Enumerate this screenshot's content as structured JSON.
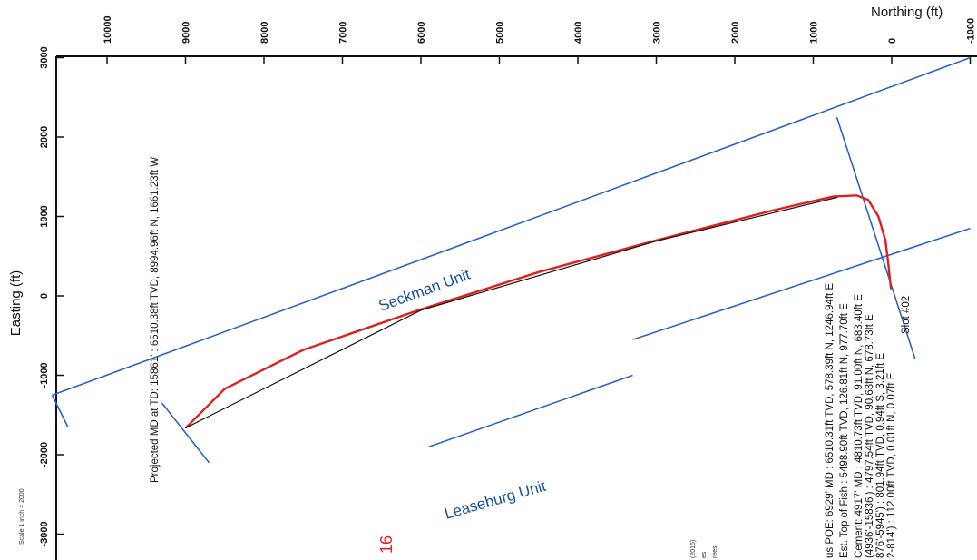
{
  "chart_data": {
    "type": "line",
    "title": "",
    "xlabel": "Northing (ft)",
    "ylabel": "Easting (ft)",
    "x_ticks": [
      "10000",
      "9000",
      "8000",
      "7000",
      "6000",
      "5000",
      "4000",
      "3000",
      "2000",
      "1000",
      "0",
      "-1000"
    ],
    "y_ticks": [
      "3000",
      "2000",
      "1000",
      "0",
      "-1000",
      "-2000",
      "-3000"
    ],
    "grid": false,
    "series": [
      {
        "color": "#e02020",
        "points": [
          {
            "n": 10,
            "e": 90
          },
          {
            "n": 40,
            "e": 380
          },
          {
            "n": 80,
            "e": 700
          },
          {
            "n": 170,
            "e": 1000
          },
          {
            "n": 300,
            "e": 1210
          },
          {
            "n": 450,
            "e": 1265
          },
          {
            "n": 750,
            "e": 1250
          },
          {
            "n": 1500,
            "e": 1080
          },
          {
            "n": 3000,
            "e": 700
          },
          {
            "n": 4500,
            "e": 300
          },
          {
            "n": 6000,
            "e": -170
          },
          {
            "n": 7500,
            "e": -680
          },
          {
            "n": 8500,
            "e": -1170
          },
          {
            "n": 8995,
            "e": -1660
          }
        ]
      },
      {
        "color": "#111111",
        "points": [
          {
            "n": 700,
            "e": 1240
          },
          {
            "n": 3000,
            "e": 690
          },
          {
            "n": 6000,
            "e": -180
          },
          {
            "n": 8995,
            "e": -1661
          }
        ]
      }
    ],
    "boundaries": {
      "color": "#2e63c4",
      "lines": [
        [
          {
            "n": -1000,
            "e": 3000
          },
          {
            "n": 10700,
            "e": -1250
          }
        ],
        [
          {
            "n": 700,
            "e": 2250
          },
          {
            "n": -300,
            "e": -800
          }
        ],
        [
          {
            "n": -1000,
            "e": 850
          },
          {
            "n": 3300,
            "e": -550
          }
        ],
        [
          {
            "n": 3300,
            "e": -1000
          },
          {
            "n": 5900,
            "e": -1900
          }
        ],
        [
          {
            "n": 10700,
            "e": -1250
          },
          {
            "n": 10500,
            "e": -1650
          }
        ],
        [
          {
            "n": 9300,
            "e": -1350
          },
          {
            "n": 8700,
            "e": -2100
          }
        ]
      ]
    },
    "annotations": {
      "projected_td": "Projected MD at TD: 15861' : 6510.38ft TVD, 8994.96ft N, 1661.23ft W",
      "seckman_unit": "Seckman Unit",
      "leaseburg_unit": "Leaseburg Unit",
      "slot": "Slot #02",
      "scale": "Scale 1 inch = 2000",
      "red_fragment": "16",
      "fragment_a": "(2016)",
      "fragment_b": "es",
      "fragment_c": "rees",
      "well_lines": [
        "us POE: 6929' MD : 6510.31ft TVD, 578.39ft N, 1246.94ft E",
        "Est. Top of Fish : 5498.90ft TVD, 126.81ft N, 977.70ft E",
        "Cement: 4917' MD : 4810.73ft TVD, 91.00ft N, 683.40ft E",
        "(4936'-15836') : 4797.54ft TVD, 90.63ft N, 678.73ft E",
        "876'-5945') : 801.94ft TVD, 0.94ft S, 3.21ft E",
        "2-814') : 112.00ft TVD, 0.01ft N, 0.07ft E"
      ]
    }
  }
}
